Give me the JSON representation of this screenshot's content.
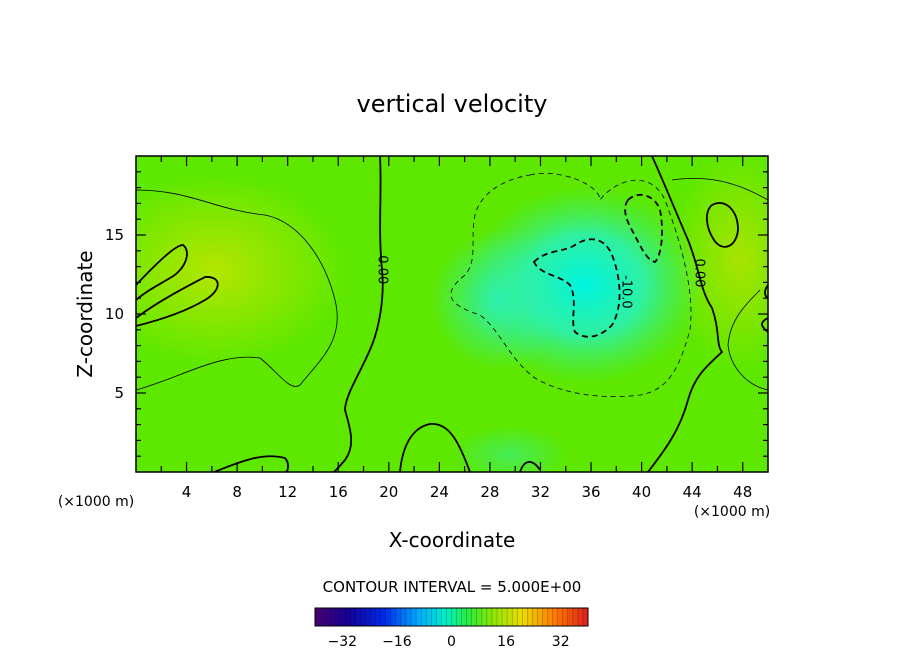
{
  "chart_data": {
    "type": "heatmap",
    "title": "vertical velocity",
    "xlabel": "X-coordinate",
    "ylabel": "Z-coordinate",
    "x_unit": "(×1000 m)",
    "y_unit": "(×1000 m)",
    "xlim": [
      0,
      50
    ],
    "ylim": [
      0,
      20
    ],
    "x_ticks": [
      4,
      8,
      12,
      16,
      20,
      24,
      28,
      32,
      36,
      40,
      44,
      48
    ],
    "y_ticks": [
      5,
      10,
      15
    ],
    "contour_interval_text": "CONTOUR INTERVAL = 5.000E+00",
    "contour_labels": [
      {
        "text": "0.00",
        "x": 19.5,
        "z": 12.8
      },
      {
        "text": "-10.0",
        "x": 38.8,
        "z": 11.4
      },
      {
        "text": "0.00",
        "x": 44.6,
        "z": 12.6
      }
    ],
    "colorbar": {
      "range": [
        -40,
        40
      ],
      "tick_values": [
        -32,
        -16,
        0,
        16,
        32
      ],
      "tick_labels": [
        "−32",
        "−16",
        "0",
        "16",
        "32"
      ]
    },
    "colors": {
      "field_positive": "#9be000",
      "field_neutral": "#55e800",
      "field_negative": "#00f0d0"
    }
  }
}
